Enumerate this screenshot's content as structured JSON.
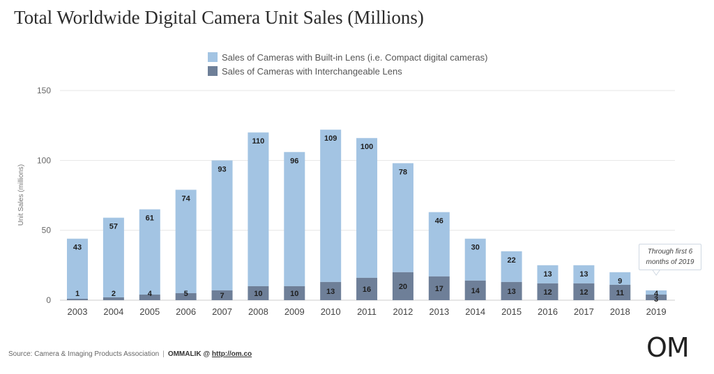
{
  "chart_data": {
    "type": "bar",
    "stacked": true,
    "title": "Total Worldwide Digital Camera Unit Sales (Millions)",
    "ylabel": "Unit Sales (millions)",
    "xlabel": "",
    "ylim": [
      0,
      150
    ],
    "yticks": [
      0,
      50,
      100,
      150
    ],
    "grid": true,
    "legend_position": "top-center",
    "categories": [
      "2003",
      "2004",
      "2005",
      "2006",
      "2007",
      "2008",
      "2009",
      "2010",
      "2011",
      "2012",
      "2013",
      "2014",
      "2015",
      "2016",
      "2017",
      "2018",
      "2019"
    ],
    "series": [
      {
        "name": "Sales of Cameras with Interchangeable Lens",
        "color": "#6e7f98",
        "values": [
          1,
          2,
          4,
          5,
          7,
          10,
          10,
          13,
          16,
          20,
          17,
          14,
          13,
          12,
          12,
          11,
          4
        ]
      },
      {
        "name": "Sales of Cameras with Built-in Lens (i.e. Compact digital cameras)",
        "color": "#a3c4e3",
        "values": [
          43,
          57,
          61,
          74,
          93,
          110,
          96,
          109,
          100,
          78,
          46,
          30,
          22,
          13,
          13,
          9,
          3
        ]
      }
    ],
    "annotation": {
      "category": "2019",
      "text_line1": "Through first 6",
      "text_line2": "months of 2019"
    }
  },
  "footer": {
    "source": "Source: Camera & Imaging Products Association",
    "separator": "|",
    "brand": "OMMALIK @",
    "link": "http://om.co",
    "logo": "OM"
  }
}
